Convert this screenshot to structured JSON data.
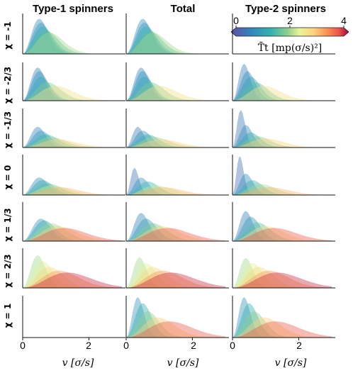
{
  "chart_data": {
    "type": "area",
    "column_titles": [
      "Type-1 spinners",
      "Total",
      "Type-2 spinners"
    ],
    "row_labels": [
      "χ = -1",
      "χ = -2/3",
      "χ = -1/3",
      "χ = 0",
      "χ = 1/3",
      "χ = 2/3",
      "χ = 1"
    ],
    "x_label": "v [σ/s]",
    "x_ticks": [
      "0",
      "2",
      "0",
      "2",
      "0",
      "2"
    ],
    "xlim": [
      0,
      3
    ],
    "colorbar": {
      "label": "T̄t [mp(σ/s)²]",
      "ticks": [
        "0",
        "2",
        "4"
      ],
      "range": [
        0,
        4
      ],
      "colormap": "spectral (purple-blue-teal-green-yellow-orange-red)"
    },
    "panels": [
      [
        {
          "series": [
            {
              "T": 0.8,
              "peak_v": 0.5,
              "height": 0.9
            },
            {
              "T": 1.0,
              "peak_v": 0.55,
              "height": 0.8
            },
            {
              "T": 1.3,
              "peak_v": 0.6,
              "height": 0.7
            },
            {
              "T": 1.6,
              "peak_v": 0.7,
              "height": 0.6
            },
            {
              "T": 2.0,
              "peak_v": 0.8,
              "height": 0.55
            }
          ]
        },
        {
          "series": [
            {
              "T": 0.8,
              "peak_v": 0.5,
              "height": 0.9
            },
            {
              "T": 1.0,
              "peak_v": 0.55,
              "height": 0.8
            },
            {
              "T": 1.3,
              "peak_v": 0.6,
              "height": 0.7
            },
            {
              "T": 1.6,
              "peak_v": 0.7,
              "height": 0.6
            },
            {
              "T": 2.0,
              "peak_v": 0.8,
              "height": 0.55
            }
          ]
        },
        null
      ],
      [
        {
          "series": [
            {
              "T": 0.7,
              "peak_v": 0.45,
              "height": 0.9
            },
            {
              "T": 0.9,
              "peak_v": 0.5,
              "height": 0.8
            },
            {
              "T": 1.2,
              "peak_v": 0.55,
              "height": 0.65
            },
            {
              "T": 1.8,
              "peak_v": 0.75,
              "height": 0.5
            },
            {
              "T": 2.6,
              "peak_v": 1.0,
              "height": 0.4
            }
          ]
        },
        {
          "series": [
            {
              "T": 0.7,
              "peak_v": 0.45,
              "height": 0.9
            },
            {
              "T": 0.9,
              "peak_v": 0.5,
              "height": 0.8
            },
            {
              "T": 1.2,
              "peak_v": 0.55,
              "height": 0.65
            },
            {
              "T": 1.8,
              "peak_v": 0.75,
              "height": 0.5
            },
            {
              "T": 2.6,
              "peak_v": 1.0,
              "height": 0.4
            }
          ]
        },
        {
          "series": [
            {
              "T": 0.6,
              "peak_v": 0.35,
              "height": 1.0
            },
            {
              "T": 0.8,
              "peak_v": 0.45,
              "height": 0.8
            },
            {
              "T": 1.1,
              "peak_v": 0.55,
              "height": 0.65
            },
            {
              "T": 1.6,
              "peak_v": 0.7,
              "height": 0.5
            },
            {
              "T": 2.6,
              "peak_v": 0.95,
              "height": 0.4
            }
          ]
        }
      ],
      [
        {
          "series": [
            {
              "T": 0.7,
              "peak_v": 0.45,
              "height": 0.55
            },
            {
              "T": 1.0,
              "peak_v": 0.55,
              "height": 0.45
            },
            {
              "T": 1.4,
              "peak_v": 0.7,
              "height": 0.35
            },
            {
              "T": 2.0,
              "peak_v": 0.85,
              "height": 0.28
            },
            {
              "T": 2.8,
              "peak_v": 1.05,
              "height": 0.22
            }
          ]
        },
        {
          "series": [
            {
              "T": 0.6,
              "peak_v": 0.35,
              "height": 0.55
            },
            {
              "T": 0.9,
              "peak_v": 0.5,
              "height": 0.45
            },
            {
              "T": 1.3,
              "peak_v": 0.65,
              "height": 0.35
            },
            {
              "T": 2.0,
              "peak_v": 0.85,
              "height": 0.28
            },
            {
              "T": 2.8,
              "peak_v": 1.05,
              "height": 0.22
            }
          ]
        },
        {
          "series": [
            {
              "T": 0.5,
              "peak_v": 0.25,
              "height": 1.0
            },
            {
              "T": 0.8,
              "peak_v": 0.4,
              "height": 0.6
            },
            {
              "T": 1.2,
              "peak_v": 0.55,
              "height": 0.4
            },
            {
              "T": 1.8,
              "peak_v": 0.75,
              "height": 0.3
            },
            {
              "T": 2.8,
              "peak_v": 1.0,
              "height": 0.24
            }
          ]
        }
      ],
      [
        {
          "series": [
            {
              "T": 0.8,
              "peak_v": 0.5,
              "height": 0.45
            },
            {
              "T": 1.2,
              "peak_v": 0.6,
              "height": 0.38
            },
            {
              "T": 1.6,
              "peak_v": 0.75,
              "height": 0.3
            },
            {
              "T": 2.2,
              "peak_v": 0.9,
              "height": 0.25
            },
            {
              "T": 3.0,
              "peak_v": 1.1,
              "height": 0.2
            }
          ]
        },
        {
          "series": [
            {
              "T": 0.5,
              "peak_v": 0.25,
              "height": 0.7
            },
            {
              "T": 0.9,
              "peak_v": 0.45,
              "height": 0.45
            },
            {
              "T": 1.4,
              "peak_v": 0.65,
              "height": 0.35
            },
            {
              "T": 2.2,
              "peak_v": 0.9,
              "height": 0.25
            },
            {
              "T": 3.0,
              "peak_v": 1.1,
              "height": 0.2
            }
          ]
        },
        {
          "series": [
            {
              "T": 0.4,
              "peak_v": 0.22,
              "height": 1.0
            },
            {
              "T": 0.8,
              "peak_v": 0.4,
              "height": 0.55
            },
            {
              "T": 1.3,
              "peak_v": 0.6,
              "height": 0.38
            },
            {
              "T": 2.0,
              "peak_v": 0.85,
              "height": 0.28
            },
            {
              "T": 3.0,
              "peak_v": 1.1,
              "height": 0.2
            }
          ]
        }
      ],
      [
        {
          "series": [
            {
              "T": 0.9,
              "peak_v": 0.55,
              "height": 0.6
            },
            {
              "T": 1.3,
              "peak_v": 0.65,
              "height": 0.55
            },
            {
              "T": 2.0,
              "peak_v": 0.85,
              "height": 0.48
            },
            {
              "T": 2.8,
              "peak_v": 1.05,
              "height": 0.4
            },
            {
              "T": 3.6,
              "peak_v": 1.25,
              "height": 0.35
            }
          ]
        },
        {
          "series": [
            {
              "T": 0.7,
              "peak_v": 0.45,
              "height": 0.75
            },
            {
              "T": 1.1,
              "peak_v": 0.6,
              "height": 0.6
            },
            {
              "T": 1.8,
              "peak_v": 0.8,
              "height": 0.48
            },
            {
              "T": 2.8,
              "peak_v": 1.05,
              "height": 0.4
            },
            {
              "T": 3.6,
              "peak_v": 1.25,
              "height": 0.35
            }
          ]
        },
        {
          "series": [
            {
              "T": 0.6,
              "peak_v": 0.4,
              "height": 0.8
            },
            {
              "T": 1.0,
              "peak_v": 0.55,
              "height": 0.65
            },
            {
              "T": 1.6,
              "peak_v": 0.75,
              "height": 0.5
            },
            {
              "T": 2.6,
              "peak_v": 1.0,
              "height": 0.4
            },
            {
              "T": 3.6,
              "peak_v": 1.25,
              "height": 0.35
            }
          ]
        }
      ],
      [
        {
          "series": [
            {
              "T": 2.0,
              "peak_v": 0.45,
              "height": 0.85
            },
            {
              "T": 2.3,
              "peak_v": 0.6,
              "height": 0.7
            },
            {
              "T": 2.7,
              "peak_v": 0.8,
              "height": 0.55
            },
            {
              "T": 3.2,
              "peak_v": 1.1,
              "height": 0.45
            },
            {
              "T": 3.8,
              "peak_v": 1.35,
              "height": 0.4
            }
          ]
        },
        {
          "series": [
            {
              "T": 2.0,
              "peak_v": 0.4,
              "height": 0.8
            },
            {
              "T": 2.3,
              "peak_v": 0.6,
              "height": 0.65
            },
            {
              "T": 2.7,
              "peak_v": 0.8,
              "height": 0.55
            },
            {
              "T": 3.2,
              "peak_v": 1.1,
              "height": 0.45
            },
            {
              "T": 3.8,
              "peak_v": 1.35,
              "height": 0.4
            }
          ]
        },
        {
          "series": [
            {
              "T": 2.0,
              "peak_v": 0.4,
              "height": 0.78
            },
            {
              "T": 2.3,
              "peak_v": 0.6,
              "height": 0.65
            },
            {
              "T": 2.7,
              "peak_v": 0.8,
              "height": 0.55
            },
            {
              "T": 3.2,
              "peak_v": 1.1,
              "height": 0.45
            },
            {
              "T": 3.8,
              "peak_v": 1.35,
              "height": 0.4
            }
          ]
        }
      ],
      [
        null,
        {
          "series": [
            {
              "T": 0.9,
              "peak_v": 0.35,
              "height": 1.0
            },
            {
              "T": 1.3,
              "peak_v": 0.5,
              "height": 0.85
            },
            {
              "T": 1.9,
              "peak_v": 0.65,
              "height": 0.65
            },
            {
              "T": 2.8,
              "peak_v": 0.95,
              "height": 0.5
            },
            {
              "T": 3.6,
              "peak_v": 1.3,
              "height": 0.4
            }
          ]
        },
        {
          "series": [
            {
              "T": 0.9,
              "peak_v": 0.35,
              "height": 1.0
            },
            {
              "T": 1.3,
              "peak_v": 0.5,
              "height": 0.85
            },
            {
              "T": 1.9,
              "peak_v": 0.65,
              "height": 0.65
            },
            {
              "T": 2.8,
              "peak_v": 0.95,
              "height": 0.5
            },
            {
              "T": 3.6,
              "peak_v": 1.3,
              "height": 0.4
            }
          ]
        }
      ]
    ]
  }
}
